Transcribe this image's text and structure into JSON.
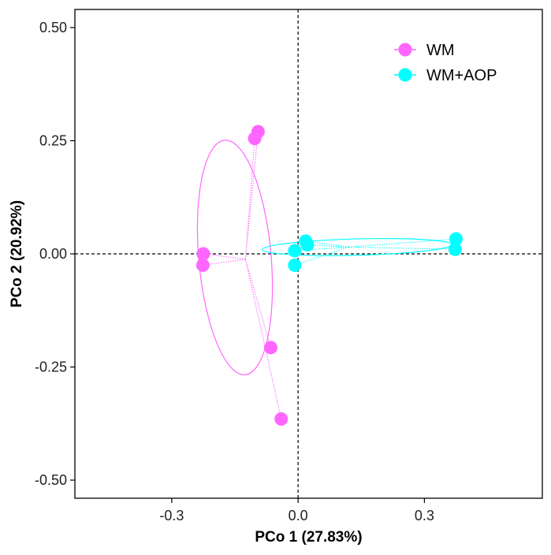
{
  "chart_data": {
    "type": "scatter",
    "xlabel": "PCo 1 (27.83%)",
    "ylabel": "PCo 2 (20.92%)",
    "xlim": [
      -0.53,
      0.58
    ],
    "ylim": [
      -0.54,
      0.54
    ],
    "x_ticks": [
      -0.3,
      0.0,
      0.3
    ],
    "x_tick_labels": [
      "-0.3",
      "0.0",
      "0.3"
    ],
    "y_ticks": [
      0.5,
      0.25,
      0.0,
      -0.25,
      -0.5
    ],
    "y_tick_labels": [
      "0.50",
      "0.25",
      "0.00",
      "-0.25",
      "-0.50"
    ],
    "reference_lines": {
      "x": 0,
      "y": 0,
      "style": "dashed"
    },
    "grid": false,
    "legend_position": "top-right",
    "series": [
      {
        "name": "WM",
        "color": "#FF66FF",
        "centroid": [
          -0.125,
          -0.012
        ],
        "points": [
          {
            "x": -0.095,
            "y": 0.27
          },
          {
            "x": -0.103,
            "y": 0.255
          },
          {
            "x": -0.225,
            "y": 0.0
          },
          {
            "x": -0.226,
            "y": -0.025
          },
          {
            "x": -0.065,
            "y": -0.207
          },
          {
            "x": -0.04,
            "y": -0.365
          }
        ],
        "ellipse": {
          "cx": -0.15,
          "cy": -0.008,
          "rx": 0.086,
          "ry": 0.26,
          "angle_deg": -5
        }
      },
      {
        "name": "WM+AOP",
        "color": "#00FFFF",
        "centroid": [
          0.12,
          0.015
        ],
        "points": [
          {
            "x": 0.018,
            "y": 0.028
          },
          {
            "x": 0.022,
            "y": 0.02
          },
          {
            "x": 0.375,
            "y": 0.033
          },
          {
            "x": 0.373,
            "y": 0.01
          },
          {
            "x": -0.008,
            "y": 0.007
          },
          {
            "x": -0.008,
            "y": -0.025
          }
        ],
        "ellipse": {
          "cx": 0.14,
          "cy": 0.015,
          "rx": 0.225,
          "ry": 0.018,
          "angle_deg": -1.5
        }
      }
    ]
  }
}
